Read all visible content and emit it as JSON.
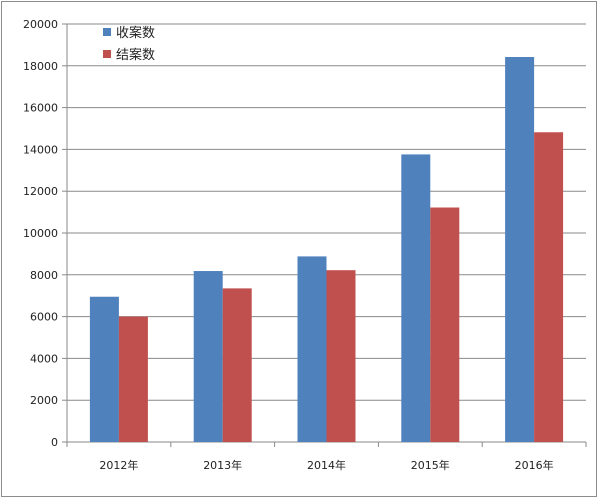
{
  "chart_data": {
    "type": "bar",
    "title": "",
    "xlabel": "",
    "ylabel": "",
    "categories": [
      "2012年",
      "2013年",
      "2014年",
      "2015年",
      "2016年"
    ],
    "series": [
      {
        "name": "收案数",
        "color": "#4f81bd",
        "values": [
          6950,
          8180,
          8880,
          13760,
          18420
        ]
      },
      {
        "name": "结案数",
        "color": "#c0504d",
        "values": [
          6000,
          7350,
          8220,
          11220,
          14820
        ]
      }
    ],
    "ylim": [
      0,
      20000
    ],
    "yticks": [
      0,
      2000,
      4000,
      6000,
      8000,
      10000,
      12000,
      14000,
      16000,
      18000,
      20000
    ],
    "grid": true,
    "legend_position": "top-left"
  }
}
